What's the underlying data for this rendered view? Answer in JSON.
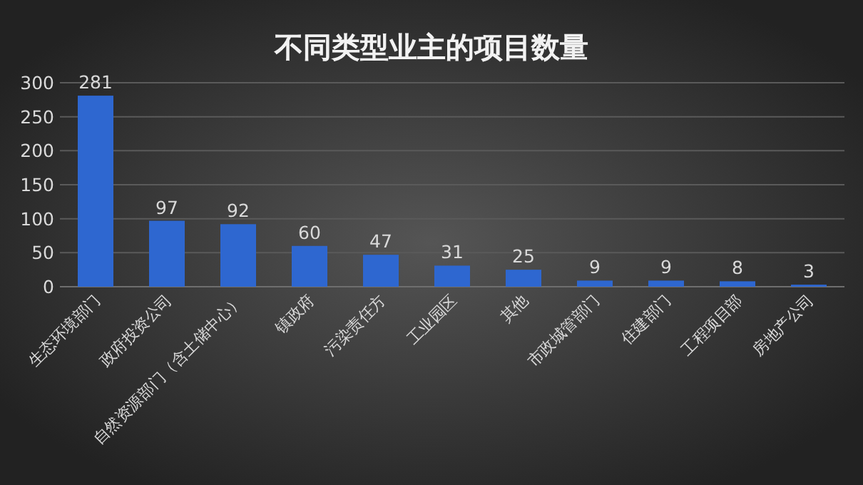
{
  "chart_data": {
    "type": "bar",
    "title": "不同类型业主的项目数量",
    "categories": [
      "生态环境部门",
      "政府投资公司",
      "自然资源部门（含土储中心）",
      "镇政府",
      "污染责任方",
      "工业园区",
      "其他",
      "市政城管部门",
      "住建部门",
      "工程项目部",
      "房地产公司"
    ],
    "values": [
      281,
      97,
      92,
      60,
      47,
      31,
      25,
      9,
      9,
      8,
      3
    ],
    "color": "#2e67d0",
    "ylim": [
      0,
      300
    ],
    "yticks": [
      0,
      50,
      100,
      150,
      200,
      250,
      300
    ],
    "grid": "y",
    "data_labels": true
  }
}
